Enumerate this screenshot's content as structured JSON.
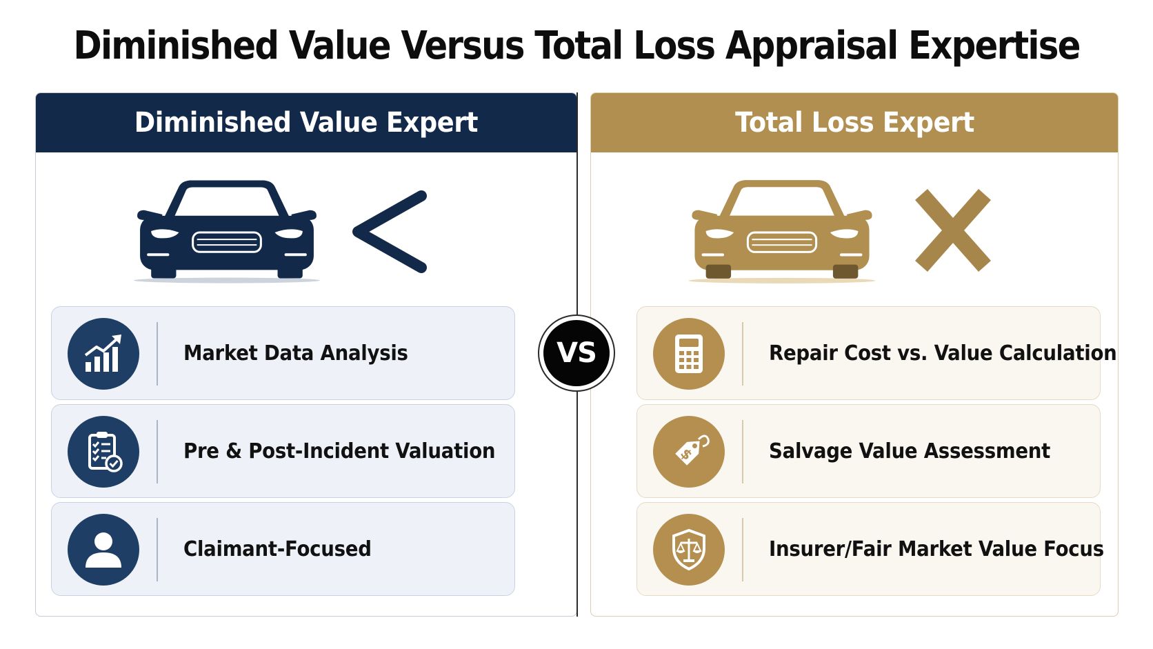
{
  "title": "Diminished Value Versus Total Loss Appraisal Expertise",
  "left_panel": {
    "heading": "Diminished Value Expert",
    "car_icon": "car-front-icon",
    "symbol_icon": "less-than-icon",
    "features": [
      {
        "label": "Market Data Analysis",
        "icon": "bar-chart-trend-icon"
      },
      {
        "label": "Pre & Post-Incident Valuation",
        "icon": "clipboard-checklist-icon"
      },
      {
        "label": "Claimant-Focused",
        "icon": "person-icon"
      }
    ]
  },
  "right_panel": {
    "heading": "Total Loss Expert",
    "car_icon": "car-front-icon",
    "symbol_icon": "x-mark-icon",
    "features": [
      {
        "label": "Repair Cost vs. Value Calculation",
        "icon": "calculator-icon"
      },
      {
        "label": "Salvage Value Assessment",
        "icon": "price-tag-icon"
      },
      {
        "label": "Insurer/Fair Market Value Focus",
        "icon": "shield-scales-icon"
      }
    ]
  },
  "vs_label": "VS",
  "colors": {
    "navy": "#13294a",
    "navy_icon": "#1f3e66",
    "gold": "#b08f50",
    "left_card_bg": "#eef2f8",
    "right_card_bg": "#faf7f0"
  }
}
